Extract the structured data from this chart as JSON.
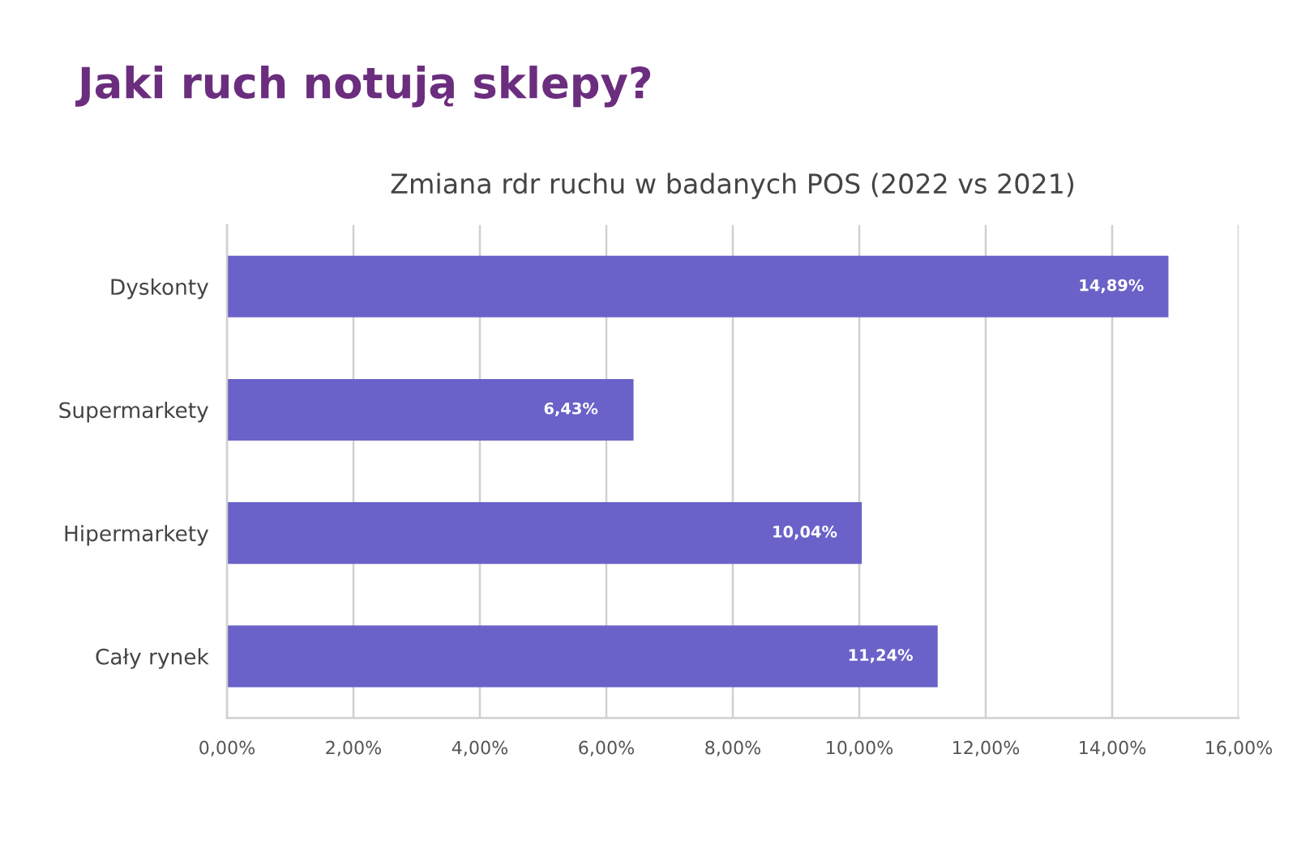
{
  "chart_data": {
    "type": "bar",
    "orientation": "horizontal",
    "title": "Jaki ruch notują sklepy?",
    "subtitle": "Zmiana rdr ruchu w badanych POS (2022 vs 2021)",
    "categories": [
      "Dyskonty",
      "Supermarkety",
      "Hipermarkety",
      "Cały rynek"
    ],
    "values": [
      14.89,
      6.43,
      10.04,
      11.24
    ],
    "value_labels": [
      "14,89%",
      "6,43%",
      "10,04%",
      "11,24%"
    ],
    "color": "#6a62c8",
    "xlim": [
      0,
      16
    ],
    "xticks": [
      {
        "value": 0,
        "label": "0,00%"
      },
      {
        "value": 2,
        "label": "2,00%"
      },
      {
        "value": 4,
        "label": "4,00%"
      },
      {
        "value": 6,
        "label": "6,00%"
      },
      {
        "value": 8,
        "label": "8,00%"
      },
      {
        "value": 10,
        "label": "10,00%"
      },
      {
        "value": 12,
        "label": "12,00%"
      },
      {
        "value": 14,
        "label": "14,00%"
      },
      {
        "value": 16,
        "label": "16,00%"
      }
    ],
    "grid": "x",
    "legend": false
  }
}
